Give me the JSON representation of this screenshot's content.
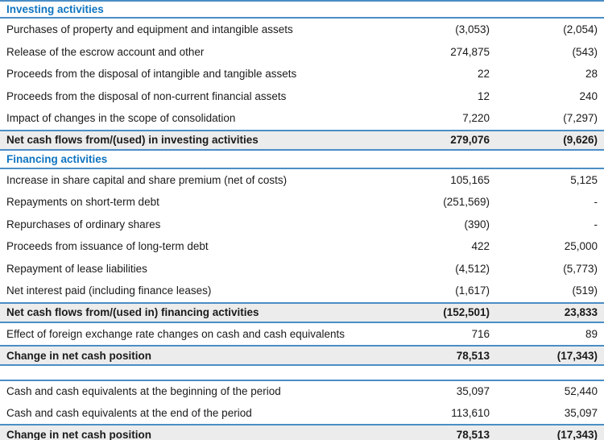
{
  "document_type": "cash-flow-statement-excerpt",
  "colors": {
    "header-blue": "#0e74c0",
    "line-blue": "#4a8ec6",
    "band-gray": "#ececec",
    "text-dark": "#1a1a1a"
  },
  "rows": [
    {
      "type": "section-header",
      "label": "Investing activities"
    },
    {
      "type": "data",
      "label": "Purchases of property and equipment and intangible assets",
      "col1": "(3,053)",
      "col2": "(2,054)"
    },
    {
      "type": "data",
      "label": "Release of the escrow account and other",
      "col1": "274,875",
      "col2": "(543)"
    },
    {
      "type": "data",
      "label": "Proceeds from the disposal of intangible and tangible assets",
      "col1": "22",
      "col2": "28"
    },
    {
      "type": "data",
      "label": "Proceeds from the disposal of non-current financial assets",
      "col1": "12",
      "col2": "240"
    },
    {
      "type": "data",
      "label": "Impact of changes in the scope of consolidation",
      "col1": "7,220",
      "col2": "(7,297)"
    },
    {
      "type": "total",
      "label": "Net cash flows from/(used) in investing activities",
      "col1": "279,076",
      "col2": "(9,626)"
    },
    {
      "type": "section-header",
      "label": "Financing activities"
    },
    {
      "type": "data",
      "label": "Increase in share capital and share premium (net of costs)",
      "col1": "105,165",
      "col2": "5,125"
    },
    {
      "type": "data",
      "label": "Repayments on short-term debt",
      "col1": "(251,569)",
      "col2": "-"
    },
    {
      "type": "data",
      "label": "Repurchases of ordinary shares",
      "col1": "(390)",
      "col2": "-"
    },
    {
      "type": "data",
      "label": "Proceeds from issuance of long-term debt",
      "col1": "422",
      "col2": "25,000"
    },
    {
      "type": "data",
      "label": "Repayment of lease liabilities",
      "col1": "(4,512)",
      "col2": "(5,773)"
    },
    {
      "type": "data",
      "label": "Net interest paid (including finance leases)",
      "col1": "(1,617)",
      "col2": "(519)"
    },
    {
      "type": "total",
      "label": "Net cash flows from/(used in) financing activities",
      "col1": "(152,501)",
      "col2": "23,833"
    },
    {
      "type": "data",
      "label": "Effect of foreign exchange rate changes on cash and cash equivalents",
      "col1": "716",
      "col2": "89"
    },
    {
      "type": "total",
      "label": "Change in net cash position",
      "col1": "78,513",
      "col2": "(17,343)"
    },
    {
      "type": "data",
      "label": "Cash and cash equivalents at the beginning of the period",
      "col1": "35,097",
      "col2": "52,440"
    },
    {
      "type": "data",
      "label": "Cash and cash equivalents at the end of the period",
      "col1": "113,610",
      "col2": "35,097"
    },
    {
      "type": "total",
      "label": "Change in net cash position",
      "col1": "78,513",
      "col2": "(17,343)"
    }
  ]
}
